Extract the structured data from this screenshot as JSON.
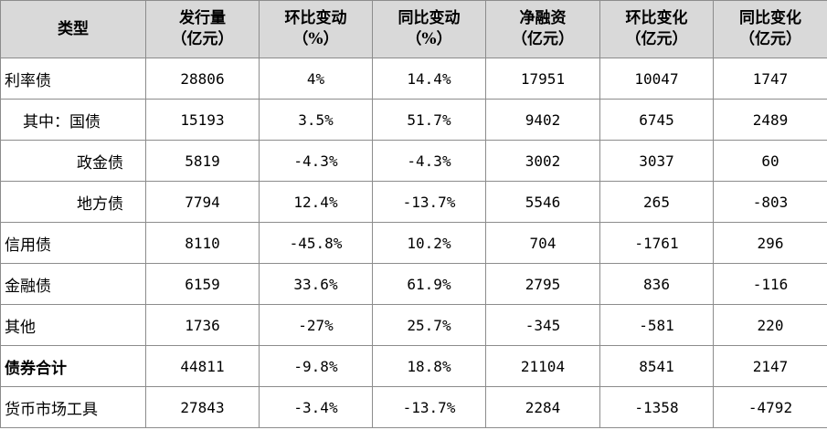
{
  "header": {
    "type": "类型",
    "columns": [
      {
        "line1": "发行量",
        "line2": "（亿元）"
      },
      {
        "line1": "环比变动",
        "line2": "（%）"
      },
      {
        "line1": "同比变动",
        "line2": "（%）"
      },
      {
        "line1": "净融资",
        "line2": "（亿元）"
      },
      {
        "line1": "环比变化",
        "line2": "（亿元）"
      },
      {
        "line1": "同比变化",
        "line2": "（亿元）"
      }
    ]
  },
  "rows": [
    {
      "label": "利率债",
      "values": [
        "28806",
        "4%",
        "14.4%",
        "17951",
        "10047",
        "1747"
      ]
    },
    {
      "label": "其中：国债",
      "values": [
        "15193",
        "3.5%",
        "51.7%",
        "9402",
        "6745",
        "2489"
      ]
    },
    {
      "label": "政金债",
      "values": [
        "5819",
        "-4.3%",
        "-4.3%",
        "3002",
        "3037",
        "60"
      ]
    },
    {
      "label": "地方债",
      "values": [
        "7794",
        "12.4%",
        "-13.7%",
        "5546",
        "265",
        "-803"
      ]
    },
    {
      "label": "信用债",
      "values": [
        "8110",
        "-45.8%",
        "10.2%",
        "704",
        "-1761",
        "296"
      ]
    },
    {
      "label": "金融债",
      "values": [
        "6159",
        "33.6%",
        "61.9%",
        "2795",
        "836",
        "-116"
      ]
    },
    {
      "label": "其他",
      "values": [
        "1736",
        "-27%",
        "25.7%",
        "-345",
        "-581",
        "220"
      ]
    },
    {
      "label": "债券合计",
      "values": [
        "44811",
        "-9.8%",
        "18.8%",
        "21104",
        "8541",
        "2147"
      ]
    },
    {
      "label": "货币市场工具",
      "values": [
        "27843",
        "-3.4%",
        "-13.7%",
        "2284",
        "-1358",
        "-4792"
      ]
    }
  ]
}
